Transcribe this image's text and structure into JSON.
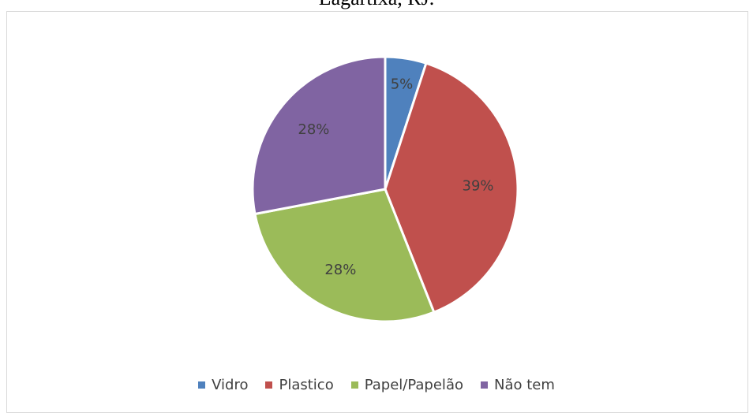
{
  "chart_title_visible_fragment": "Lagartixa, RJ.",
  "chart_data": {
    "type": "pie",
    "categories": [
      "Vidro",
      "Plastico",
      "Papel/Papelão",
      "Não tem"
    ],
    "values": [
      5,
      39,
      28,
      28
    ],
    "data_labels": [
      "5%",
      "39%",
      "28%",
      "28%"
    ],
    "colors": [
      "#4f81bd",
      "#c0504d",
      "#9bbb59",
      "#8064a2"
    ],
    "legend_position": "bottom",
    "start_angle": "12 o'clock, clockwise"
  },
  "legend": {
    "items": [
      {
        "label": "Vidro",
        "color": "#4f81bd"
      },
      {
        "label": "Plastico",
        "color": "#c0504d"
      },
      {
        "label": "Papel/Papelão",
        "color": "#9bbb59"
      },
      {
        "label": "Não tem",
        "color": "#8064a2"
      }
    ]
  }
}
